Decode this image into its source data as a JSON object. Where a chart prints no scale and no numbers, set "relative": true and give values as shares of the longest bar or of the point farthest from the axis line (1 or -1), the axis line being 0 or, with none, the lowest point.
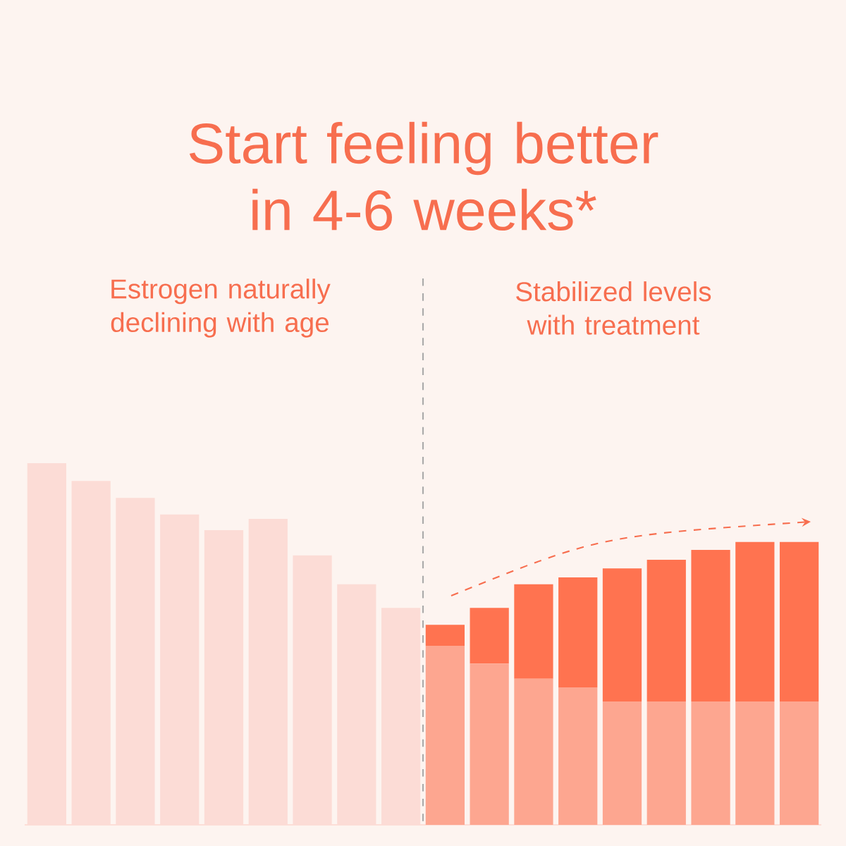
{
  "chart_data": {
    "type": "bar",
    "title": "Start feeling better in 4-6 weeks*",
    "annotations": [
      "Estrogen naturally declining with age",
      "Stabilized levels with treatment"
    ],
    "relative": true,
    "stacked": true,
    "categories": [
      null,
      null,
      null,
      null,
      null,
      null,
      null,
      null,
      null,
      null,
      null,
      null,
      null,
      null,
      null,
      null,
      null,
      null
    ],
    "series": [
      {
        "color": "#fcdcd6",
        "values": [
          1.0,
          0.951,
          0.904,
          0.858,
          0.815,
          0.846,
          0.745,
          0.665,
          0.6,
          null,
          null,
          null,
          null,
          null,
          null,
          null,
          null,
          null
        ]
      },
      {
        "color": "#fda690",
        "values": [
          null,
          null,
          null,
          null,
          null,
          null,
          null,
          null,
          null,
          0.495,
          0.446,
          0.404,
          0.38,
          0.341,
          0.341,
          0.341,
          0.341,
          0.341
        ]
      },
      {
        "color": "#ff7350",
        "values": [
          null,
          null,
          null,
          null,
          null,
          null,
          null,
          null,
          null,
          0.058,
          0.154,
          0.261,
          0.304,
          0.368,
          0.392,
          0.419,
          0.441,
          0.441
        ]
      }
    ]
  }
}
